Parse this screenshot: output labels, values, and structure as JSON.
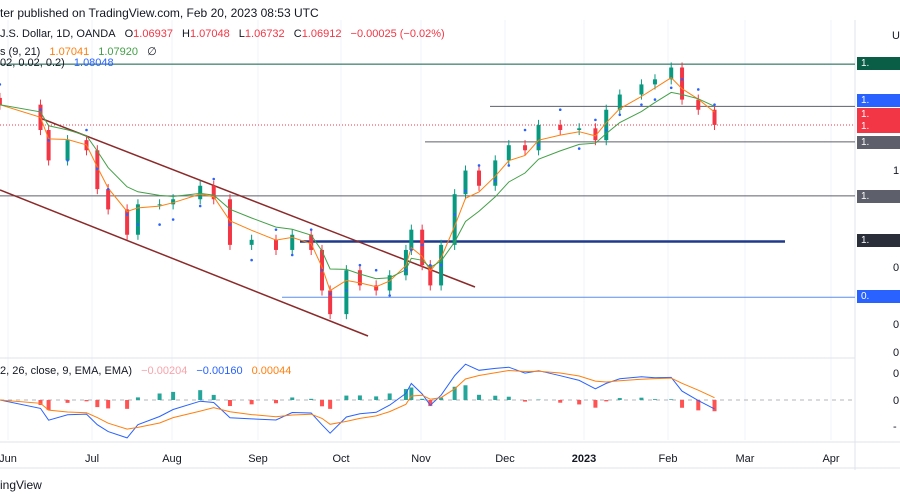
{
  "header": {
    "published": "ter published on TradingView.com, Feb 20, 2023 08:53 UTC"
  },
  "legend": {
    "symbol": "J.S. Dollar, 1D, OANDA",
    "o_label": "O",
    "o": "1.06937",
    "h_label": "H",
    "h": "1.07048",
    "l_label": "L",
    "l": "1.06732",
    "c_label": "C",
    "c": "1.06912",
    "change": "−0.00025 (−0.02%)",
    "ma_label": "s (9, 21)",
    "ma_fast": "1.07041",
    "ma_slow": "1.07920",
    "ma_extra": "∅",
    "sar_label": "02, 0.02, 0.2)",
    "sar": "1.08048",
    "macd_label": "2, 26, close, 9, EMA, EMA)",
    "macd_hist": "−0.00204",
    "macd_line": "−0.00160",
    "macd_signal": "0.00044"
  },
  "price_axis": {
    "currency": "U",
    "labels": [
      "1.",
      "1.",
      "1.",
      "1.",
      "1.",
      "1.",
      "1.",
      "0.",
      "0.",
      "0.",
      "0."
    ],
    "macd_labels": [
      "0.",
      "0.",
      "-"
    ]
  },
  "price_tags": [
    {
      "text": "1.",
      "color": "#0b5e46"
    },
    {
      "text": "1.",
      "color": "#2962ff"
    },
    {
      "text": "1.",
      "color": "#f23645"
    },
    {
      "text": "1.",
      "color": "#f23645"
    },
    {
      "text": "1.",
      "color": "#5d606b"
    },
    {
      "text": "1.",
      "color": "#5d606b"
    },
    {
      "text": "1.",
      "color": "#2a2e39"
    },
    {
      "text": "0.",
      "color": "#2962ff"
    }
  ],
  "footer": {
    "brand": "ingView"
  },
  "colors": {
    "up": "#089981",
    "down": "#f23645",
    "ma_fast": "#ff7f0e",
    "ma_slow": "#43a047",
    "sar": "#2962ff",
    "channel": "#8b2a2a"
  },
  "chart_data": {
    "type": "candlestick",
    "title": "",
    "x_ticks": [
      "Jun",
      "Jul",
      "Aug",
      "Sep",
      "Oct",
      "Nov",
      "Dec",
      "2023",
      "Feb",
      "Mar",
      "Apr"
    ],
    "closes": [
      [
        "2022-05-29",
        1.081
      ],
      [
        "2022-06-13",
        1.066
      ],
      [
        "2022-06-16",
        1.048
      ],
      [
        "2022-06-23",
        1.06
      ],
      [
        "2022-06-30",
        1.054
      ],
      [
        "2022-07-04",
        1.031
      ],
      [
        "2022-07-08",
        1.019
      ],
      [
        "2022-07-15",
        1.004
      ],
      [
        "2022-07-19",
        1.022
      ],
      [
        "2022-07-27",
        1.022
      ],
      [
        "2022-08-01",
        1.025
      ],
      [
        "2022-08-11",
        1.033
      ],
      [
        "2022-08-16",
        1.025
      ],
      [
        "2022-08-22",
        0.998
      ],
      [
        "2022-08-30",
        1.001
      ],
      [
        "2022-09-08",
        0.995
      ],
      [
        "2022-09-14",
        1.004
      ],
      [
        "2022-09-21",
        0.995
      ],
      [
        "2022-09-25",
        0.971
      ],
      [
        "2022-09-28",
        0.957
      ],
      [
        "2022-10-04",
        0.983
      ],
      [
        "2022-10-09",
        0.974
      ],
      [
        "2022-10-15",
        0.971
      ],
      [
        "2022-10-20",
        0.98
      ],
      [
        "2022-10-26",
        0.995
      ],
      [
        "2022-10-28",
        1.007
      ],
      [
        "2022-11-01",
        0.986
      ],
      [
        "2022-11-04",
        0.974
      ],
      [
        "2022-11-08",
        0.998
      ],
      [
        "2022-11-13",
        1.028
      ],
      [
        "2022-11-17",
        1.042
      ],
      [
        "2022-11-22",
        1.033
      ],
      [
        "2022-11-28",
        1.048
      ],
      [
        "2022-12-03",
        1.057
      ],
      [
        "2022-12-09",
        1.054
      ],
      [
        "2022-12-14",
        1.069
      ],
      [
        "2022-12-22",
        1.066
      ],
      [
        "2022-12-29",
        1.067
      ],
      [
        "2023-01-04",
        1.06
      ],
      [
        "2023-01-08",
        1.078
      ],
      [
        "2023-01-13",
        1.087
      ],
      [
        "2023-01-21",
        1.093
      ],
      [
        "2023-01-26",
        1.096
      ],
      [
        "2023-02-01",
        1.103
      ],
      [
        "2023-02-05",
        1.084
      ],
      [
        "2023-02-11",
        1.078
      ],
      [
        "2023-02-17",
        1.069
      ]
    ],
    "horizontal_levels": [
      1.105,
      1.08,
      1.059,
      1.027,
      1.0,
      0.967
    ],
    "ylim": [
      0.93,
      1.12
    ]
  }
}
